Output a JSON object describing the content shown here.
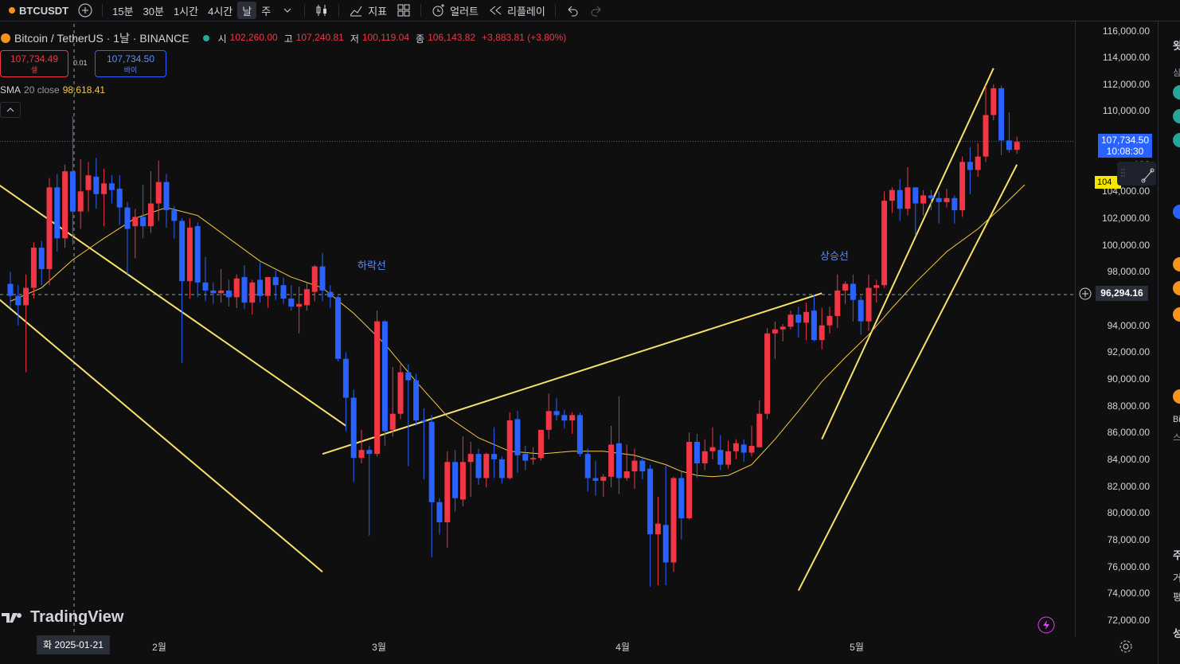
{
  "toolbar": {
    "symbol": "BTCUSDT",
    "intervals": [
      "15분",
      "30분",
      "1시간",
      "4시간",
      "날",
      "주"
    ],
    "selected_interval": "날",
    "indicators_label": "지표",
    "alert_label": "얼러트",
    "replay_label": "리플레이"
  },
  "legend": {
    "title": "Bitcoin / TetherUS · 1날 · BINANCE",
    "open_k": "시",
    "open_v": "102,260.00",
    "high_k": "고",
    "high_v": "107,240.81",
    "low_k": "저",
    "low_v": "100,119.04",
    "close_k": "종",
    "close_v": "106,143.82",
    "change": "+3,883.81 (+3.80%)"
  },
  "trade": {
    "sell_price": "107,734.49",
    "sell_label": "셀",
    "spread": "0.01",
    "buy_price": "107,734.50",
    "buy_label": "바이"
  },
  "sma": {
    "name": "SMA",
    "params": "20 close",
    "value": "98,618.41"
  },
  "annotations": {
    "down": "하락선",
    "up": "상승선"
  },
  "price_scale": {
    "ticks": [
      "116,000.00",
      "114,000.00",
      "112,000.00",
      "110,000.00",
      "106",
      "104,000.00",
      "102,000.00",
      "100,000.00",
      "98,000.00",
      "94,000.00",
      "92,000.00",
      "90,000.00",
      "88,000.00",
      "86,000.00",
      "84,000.00",
      "82,000.00",
      "80,000.00",
      "78,000.00",
      "76,000.00",
      "74,000.00",
      "72,000.00"
    ],
    "current_price": "107,734.50",
    "countdown": "10:08:30",
    "crosshair_price": "96,294.16",
    "sma_label": "104"
  },
  "time_axis": {
    "crosshair_date": "화 2025-01-21",
    "labels": [
      "2월",
      "3월",
      "4월",
      "5월"
    ]
  },
  "logo": "TradingView",
  "right_panel": {
    "chars": [
      "왓",
      "심",
      "Bi",
      "스",
      "주",
      "거",
      "평",
      "성"
    ]
  },
  "colors": {
    "up": "#f23645",
    "down": "#2962ff",
    "sma": "#f7c948",
    "trend": "#f7e26b",
    "bg": "#0f0f0f"
  },
  "chart_data": {
    "type": "candlestick",
    "title": "Bitcoin / TetherUS · 1날 · BINANCE",
    "ylim": [
      71000,
      117000
    ],
    "x_range": [
      "2025-01-10",
      "2025-05-21"
    ],
    "candles": [
      [
        97100,
        98000,
        95300,
        96200
      ],
      [
        96200,
        97000,
        94000,
        95500
      ],
      [
        95500,
        97800,
        90500,
        96800
      ],
      [
        96800,
        100200,
        96000,
        99800
      ],
      [
        99800,
        100300,
        97000,
        98200
      ],
      [
        98200,
        105000,
        97000,
        104300
      ],
      [
        104300,
        105300,
        99500,
        100500
      ],
      [
        100500,
        106000,
        99800,
        105500
      ],
      [
        105500,
        109600,
        100000,
        102500
      ],
      [
        102500,
        106400,
        101200,
        104000
      ],
      [
        104100,
        106200,
        102500,
        105200
      ],
      [
        105100,
        106500,
        102700,
        103800
      ],
      [
        103800,
        105700,
        101400,
        104600
      ],
      [
        104600,
        105200,
        103100,
        104100
      ],
      [
        104200,
        105200,
        101500,
        102800
      ],
      [
        102800,
        103200,
        97800,
        101200
      ],
      [
        101400,
        102700,
        99000,
        102100
      ],
      [
        102100,
        104500,
        100500,
        101400
      ],
      [
        101400,
        105500,
        100900,
        103100
      ],
      [
        103100,
        106300,
        101800,
        104700
      ],
      [
        104700,
        105300,
        101300,
        102600
      ],
      [
        102600,
        102900,
        100500,
        101800
      ],
      [
        101800,
        102000,
        91200,
        97300
      ],
      [
        97300,
        102000,
        96000,
        101300
      ],
      [
        101400,
        101700,
        96100,
        97200
      ],
      [
        97200,
        99100,
        95800,
        96600
      ],
      [
        96600,
        97200,
        95600,
        96400
      ],
      [
        96400,
        98200,
        95700,
        96600
      ],
      [
        96600,
        97400,
        95400,
        96100
      ],
      [
        96100,
        97800,
        95300,
        97500
      ],
      [
        97600,
        98500,
        95200,
        95700
      ],
      [
        95700,
        97400,
        94800,
        97200
      ],
      [
        97400,
        98700,
        95700,
        96200
      ],
      [
        96200,
        97200,
        95300,
        97600
      ],
      [
        97600,
        98100,
        95900,
        97000
      ],
      [
        97000,
        97600,
        95600,
        96000
      ],
      [
        96000,
        97000,
        95100,
        95400
      ],
      [
        95400,
        96900,
        93400,
        95600
      ],
      [
        95500,
        97200,
        95100,
        96700
      ],
      [
        96500,
        98500,
        95800,
        98400
      ],
      [
        98400,
        99400,
        95800,
        96600
      ],
      [
        96500,
        97000,
        95300,
        96100
      ],
      [
        96100,
        96200,
        91300,
        91500
      ],
      [
        91500,
        92000,
        86100,
        88600
      ],
      [
        88600,
        89200,
        82300,
        84100
      ],
      [
        84100,
        86200,
        83700,
        84700
      ],
      [
        84700,
        85000,
        78300,
        84400
      ],
      [
        84400,
        95100,
        84200,
        94300
      ],
      [
        94300,
        94400,
        85000,
        86100
      ],
      [
        86200,
        90900,
        85700,
        87400
      ],
      [
        87400,
        91100,
        87000,
        90500
      ],
      [
        90500,
        91100,
        83500,
        89900
      ],
      [
        89900,
        90400,
        86500,
        86900
      ],
      [
        86900,
        87800,
        82500,
        86800
      ],
      [
        86800,
        87300,
        76700,
        80800
      ],
      [
        80800,
        81100,
        78400,
        79300
      ],
      [
        79300,
        84600,
        77400,
        83800
      ],
      [
        83800,
        84700,
        80100,
        81100
      ],
      [
        81000,
        85700,
        80500,
        83800
      ],
      [
        83800,
        85300,
        81200,
        84400
      ],
      [
        84400,
        84800,
        82100,
        82600
      ],
      [
        82600,
        84500,
        81900,
        84400
      ],
      [
        84400,
        86400,
        82600,
        84000
      ],
      [
        84000,
        84200,
        82200,
        82600
      ],
      [
        82600,
        87500,
        82500,
        86900
      ],
      [
        87000,
        87600,
        83000,
        84300
      ],
      [
        84400,
        85000,
        83200,
        83900
      ],
      [
        84000,
        84900,
        83600,
        84100
      ],
      [
        84100,
        86100,
        83900,
        86200
      ],
      [
        86200,
        88900,
        85500,
        87600
      ],
      [
        87600,
        88600,
        86900,
        87300
      ],
      [
        87300,
        87700,
        86300,
        86900
      ],
      [
        86900,
        87500,
        85900,
        87300
      ],
      [
        87300,
        87500,
        84200,
        84400
      ],
      [
        84400,
        84800,
        81600,
        82600
      ],
      [
        82600,
        83900,
        81300,
        82400
      ],
      [
        82400,
        82900,
        81200,
        82700
      ],
      [
        82700,
        86500,
        81900,
        85100
      ],
      [
        85200,
        88700,
        81400,
        82600
      ],
      [
        82600,
        85100,
        82400,
        83100
      ],
      [
        83100,
        84800,
        81800,
        83900
      ],
      [
        83900,
        84200,
        82500,
        83100
      ],
      [
        83300,
        83600,
        74500,
        78400
      ],
      [
        78400,
        81200,
        74600,
        79200
      ],
      [
        79100,
        83500,
        74600,
        76300
      ],
      [
        76300,
        82700,
        75600,
        82600
      ],
      [
        82600,
        83100,
        78000,
        79600
      ],
      [
        79600,
        86000,
        79500,
        85300
      ],
      [
        85300,
        85900,
        82600,
        83700
      ],
      [
        83700,
        85500,
        83200,
        84600
      ],
      [
        84600,
        86400,
        84000,
        84900
      ],
      [
        84700,
        85800,
        83200,
        83600
      ],
      [
        83600,
        85400,
        83300,
        84600
      ],
      [
        84600,
        85500,
        84000,
        85200
      ],
      [
        85100,
        85500,
        83800,
        84500
      ],
      [
        84500,
        86500,
        84200,
        85000
      ],
      [
        84900,
        88400,
        84900,
        87400
      ],
      [
        87400,
        93800,
        87000,
        93400
      ],
      [
        93400,
        94300,
        91500,
        93700
      ],
      [
        93700,
        94100,
        92800,
        93900
      ],
      [
        93900,
        95100,
        93700,
        94800
      ],
      [
        94800,
        95400,
        93100,
        94200
      ],
      [
        94200,
        95700,
        92900,
        95000
      ],
      [
        95100,
        96300,
        92800,
        92900
      ],
      [
        92900,
        95300,
        92200,
        94000
      ],
      [
        94000,
        95400,
        93400,
        94700
      ],
      [
        94700,
        97800,
        93800,
        96600
      ],
      [
        96600,
        97300,
        95600,
        97100
      ],
      [
        97100,
        97800,
        94300,
        95900
      ],
      [
        95900,
        96200,
        93300,
        94300
      ],
      [
        94300,
        97800,
        93600,
        96800
      ],
      [
        96800,
        97400,
        95700,
        97000
      ],
      [
        97000,
        104000,
        96800,
        103300
      ],
      [
        103300,
        104300,
        102400,
        104100
      ],
      [
        104100,
        104900,
        101800,
        102700
      ],
      [
        102700,
        105800,
        102200,
        104300
      ],
      [
        104300,
        104300,
        100700,
        103100
      ],
      [
        103100,
        104100,
        102200,
        103700
      ],
      [
        103700,
        104100,
        102600,
        103500
      ],
      [
        103500,
        104000,
        101600,
        103200
      ],
      [
        103200,
        104200,
        102800,
        103500
      ],
      [
        103500,
        103700,
        101600,
        102600
      ],
      [
        102600,
        106600,
        102100,
        106200
      ],
      [
        106200,
        107300,
        103800,
        105600
      ],
      [
        105600,
        107600,
        105100,
        106600
      ],
      [
        106600,
        111900,
        106200,
        109700
      ],
      [
        109700,
        112000,
        109300,
        111700
      ],
      [
        111700,
        111900,
        106700,
        107800
      ],
      [
        107800,
        109900,
        106900,
        107100
      ],
      [
        107100,
        108100,
        106800,
        107700
      ]
    ],
    "sma20": [
      [
        0,
        95800
      ],
      [
        4,
        96800
      ],
      [
        8,
        98900
      ],
      [
        12,
        100500
      ],
      [
        16,
        102000
      ],
      [
        20,
        102800
      ],
      [
        24,
        102200
      ],
      [
        28,
        100500
      ],
      [
        32,
        98800
      ],
      [
        36,
        97600
      ],
      [
        40,
        96800
      ],
      [
        44,
        94900
      ],
      [
        48,
        92600
      ],
      [
        52,
        89800
      ],
      [
        56,
        87200
      ],
      [
        60,
        85600
      ],
      [
        64,
        84600
      ],
      [
        68,
        84400
      ],
      [
        72,
        84600
      ],
      [
        76,
        84600
      ],
      [
        80,
        84300
      ],
      [
        84,
        83600
      ],
      [
        86,
        83100
      ],
      [
        88,
        82800
      ],
      [
        90,
        82700
      ],
      [
        92,
        82800
      ],
      [
        95,
        83600
      ],
      [
        98,
        85500
      ],
      [
        101,
        87600
      ],
      [
        104,
        89800
      ],
      [
        107,
        91600
      ],
      [
        110,
        93300
      ],
      [
        113,
        95300
      ],
      [
        116,
        97200
      ],
      [
        120,
        99500
      ],
      [
        124,
        101200
      ],
      [
        127,
        102800
      ],
      [
        130,
        104500
      ]
    ],
    "trendlines": [
      [
        [
          -2,
          104700
        ],
        [
          43,
          86500
        ]
      ],
      [
        [
          -5,
          97700
        ],
        [
          40,
          75600
        ]
      ],
      [
        [
          40,
          84400
        ],
        [
          104,
          96400
        ]
      ],
      [
        [
          101,
          74200
        ],
        [
          129,
          106000
        ]
      ],
      [
        [
          104,
          85500
        ],
        [
          126,
          113200
        ]
      ]
    ]
  }
}
